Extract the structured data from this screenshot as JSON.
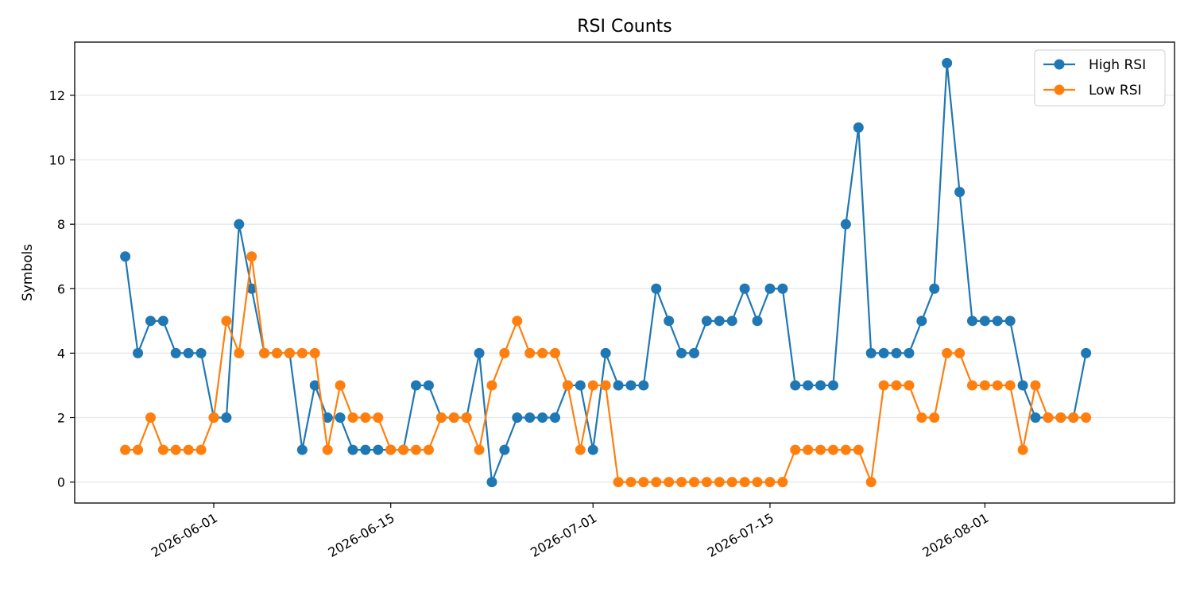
{
  "chart_data": {
    "type": "line",
    "title": "RSI Counts",
    "xlabel": "",
    "ylabel": "Symbols",
    "x_start": "2026-05-25",
    "x_ticks": [
      "2026-06-01",
      "2026-06-15",
      "2026-07-01",
      "2026-07-15",
      "2026-08-01"
    ],
    "xlim": [
      "2026-05-21",
      "2026-08-16"
    ],
    "ylim": [
      -0.65,
      13.65
    ],
    "y_ticks": [
      0,
      2,
      4,
      6,
      8,
      10,
      12
    ],
    "grid": "horizontal",
    "legend_position": "top-right",
    "series": [
      {
        "name": "High RSI",
        "color": "#1f77b4",
        "values": [
          7,
          4,
          5,
          5,
          4,
          4,
          4,
          2,
          2,
          8,
          6,
          4,
          4,
          4,
          1,
          3,
          2,
          2,
          1,
          1,
          1,
          1,
          1,
          3,
          3,
          2,
          2,
          2,
          4,
          0,
          1,
          2,
          2,
          2,
          2,
          3,
          3,
          1,
          4,
          3,
          3,
          3,
          6,
          5,
          4,
          4,
          5,
          5,
          5,
          6,
          5,
          6,
          6,
          3,
          3,
          3,
          3,
          8,
          11,
          4,
          4,
          4,
          4,
          5,
          6,
          13,
          9,
          5,
          5,
          5,
          5,
          3,
          2,
          2,
          2,
          2,
          4
        ]
      },
      {
        "name": "Low RSI",
        "color": "#ff7f0e",
        "values": [
          1,
          1,
          2,
          1,
          1,
          1,
          1,
          2,
          5,
          4,
          7,
          4,
          4,
          4,
          4,
          4,
          1,
          3,
          2,
          2,
          2,
          1,
          1,
          1,
          1,
          2,
          2,
          2,
          1,
          3,
          4,
          5,
          4,
          4,
          4,
          3,
          1,
          3,
          3,
          0,
          0,
          0,
          0,
          0,
          0,
          0,
          0,
          0,
          0,
          0,
          0,
          0,
          0,
          1,
          1,
          1,
          1,
          1,
          1,
          0,
          3,
          3,
          3,
          2,
          2,
          4,
          4,
          3,
          3,
          3,
          3,
          1,
          3,
          2,
          2,
          2,
          2
        ]
      }
    ]
  }
}
